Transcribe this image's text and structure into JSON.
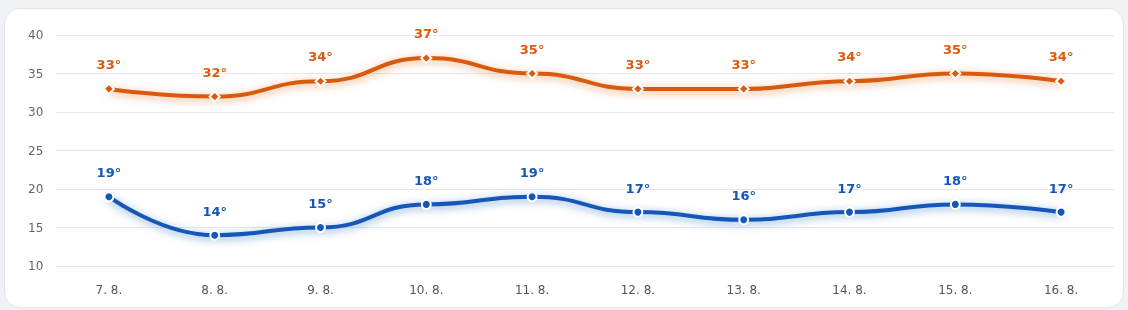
{
  "chart_data": {
    "type": "line",
    "categories": [
      "7. 8.",
      "8. 8.",
      "9. 8.",
      "10. 8.",
      "11. 8.",
      "12. 8.",
      "13. 8.",
      "14. 8.",
      "15. 8.",
      "16. 8."
    ],
    "series": [
      {
        "color": "#d95a10",
        "marker": "diamond",
        "values": [
          33,
          32,
          34,
          37,
          35,
          33,
          33,
          34,
          35,
          34
        ],
        "value_labels": [
          "33°",
          "32°",
          "34°",
          "37°",
          "35°",
          "33°",
          "33°",
          "34°",
          "35°",
          "34°"
        ]
      },
      {
        "color": "#1557b8",
        "marker": "circle",
        "values": [
          19,
          14,
          15,
          18,
          19,
          17,
          16,
          17,
          18,
          17
        ],
        "value_labels": [
          "19°",
          "14°",
          "15°",
          "18°",
          "19°",
          "17°",
          "16°",
          "17°",
          "18°",
          "17°"
        ]
      }
    ],
    "ylim": [
      10,
      40
    ],
    "yticks": [
      10,
      15,
      20,
      25,
      30,
      35,
      40
    ],
    "grid": "y",
    "line_style": "solid"
  }
}
